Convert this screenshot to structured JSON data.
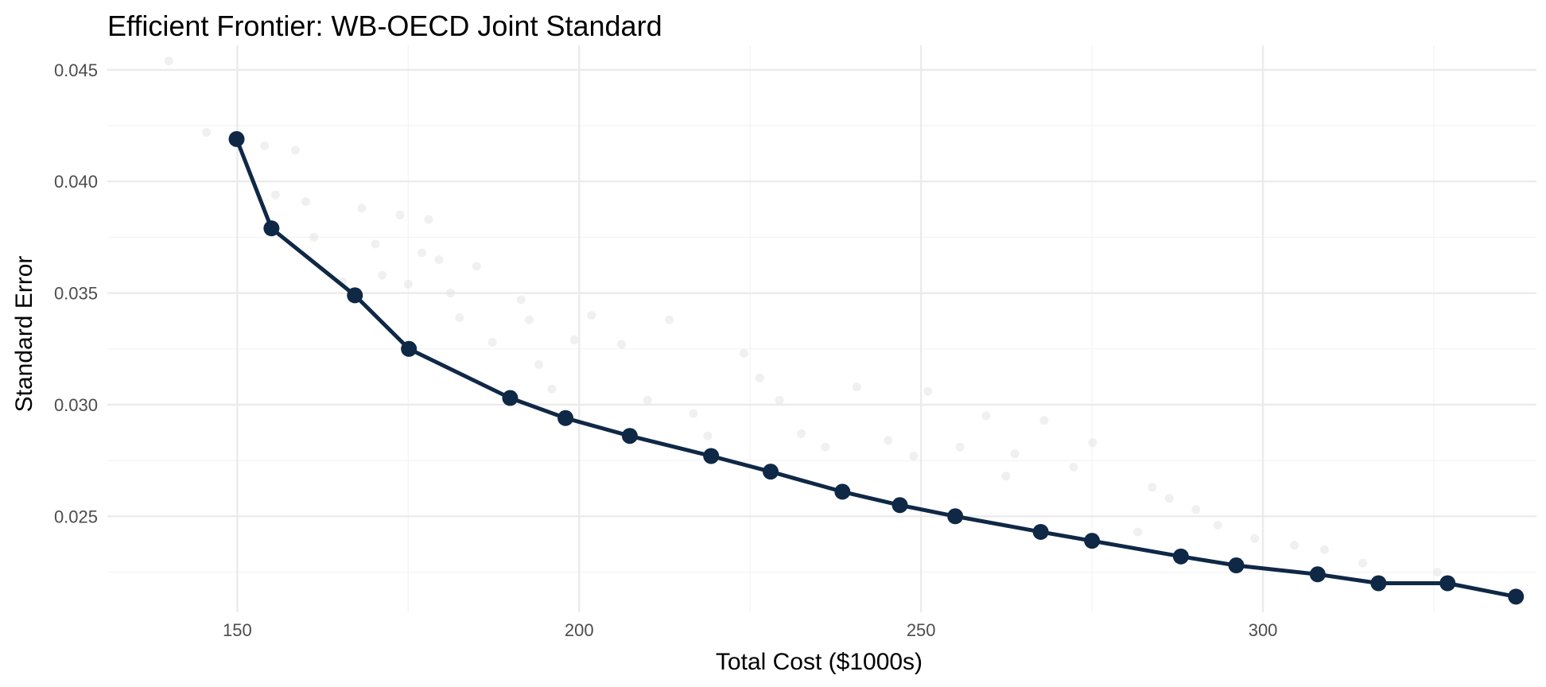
{
  "chart_data": {
    "type": "scatter",
    "title": "Efficient Frontier: WB-OECD Joint Standard",
    "xlabel": "Total Cost ($1000s)",
    "ylabel": "Standard Error",
    "xlim": [
      131,
      340
    ],
    "ylim": [
      0.0207,
      0.0461
    ],
    "x_ticks": [
      150,
      200,
      250,
      300
    ],
    "x_tick_labels": [
      "150",
      "200",
      "250",
      "300"
    ],
    "y_ticks": [
      0.025,
      0.03,
      0.035,
      0.04,
      0.045
    ],
    "y_tick_labels": [
      "0.025",
      "0.030",
      "0.035",
      "0.040",
      "0.045"
    ],
    "grid": true,
    "legend": "none",
    "colors": {
      "frontier": "#0f2846",
      "candidates": "#e3e3e3"
    },
    "series": [
      {
        "role": "frontier",
        "marker": "line+points",
        "x": [
          149.9,
          155.0,
          167.2,
          175.1,
          189.9,
          198.0,
          207.4,
          219.3,
          228.0,
          238.5,
          246.9,
          255.0,
          267.5,
          275.0,
          288.0,
          296.1,
          308.0,
          316.9,
          327.0,
          337.0
        ],
        "y": [
          0.0419,
          0.0379,
          0.0349,
          0.0325,
          0.0303,
          0.0294,
          0.0286,
          0.0277,
          0.027,
          0.0261,
          0.0255,
          0.025,
          0.0243,
          0.0239,
          0.0232,
          0.0228,
          0.0224,
          0.022,
          0.022,
          0.0214
        ]
      },
      {
        "role": "candidates",
        "marker": "points",
        "x": [
          140.0,
          145.5,
          154.0,
          158.5,
          155.6,
          160.0,
          161.2,
          165.4,
          168.2,
          170.2,
          171.2,
          173.8,
          177.0,
          175.0,
          178.0,
          179.5,
          181.2,
          182.5,
          185.0,
          187.3,
          191.5,
          194.1,
          192.7,
          196.0,
          201.8,
          199.3,
          206.2,
          210.0,
          213.2,
          216.7,
          218.8,
          224.1,
          226.4,
          229.3,
          232.5,
          236.0,
          240.6,
          245.2,
          248.9,
          251.0,
          255.7,
          259.5,
          263.7,
          268.0,
          272.3,
          275.1,
          283.8,
          290.2,
          293.4,
          298.8,
          304.6,
          309.0,
          314.6,
          325.5,
          281.7,
          286.3,
          262.4
        ],
        "y": [
          0.0454,
          0.0422,
          0.0416,
          0.0414,
          0.0394,
          0.0391,
          0.0375,
          0.0355,
          0.0388,
          0.0372,
          0.0358,
          0.0385,
          0.0368,
          0.0354,
          0.0383,
          0.0365,
          0.035,
          0.0339,
          0.0362,
          0.0328,
          0.0347,
          0.0318,
          0.0338,
          0.0307,
          0.034,
          0.0329,
          0.0327,
          0.0302,
          0.0338,
          0.0296,
          0.0286,
          0.0323,
          0.0312,
          0.0302,
          0.0287,
          0.0281,
          0.0308,
          0.0284,
          0.0277,
          0.0306,
          0.0281,
          0.0295,
          0.0278,
          0.0293,
          0.0272,
          0.0283,
          0.0263,
          0.0253,
          0.0246,
          0.024,
          0.0237,
          0.0235,
          0.0229,
          0.0225,
          0.0243,
          0.0258,
          0.0268
        ]
      }
    ]
  }
}
